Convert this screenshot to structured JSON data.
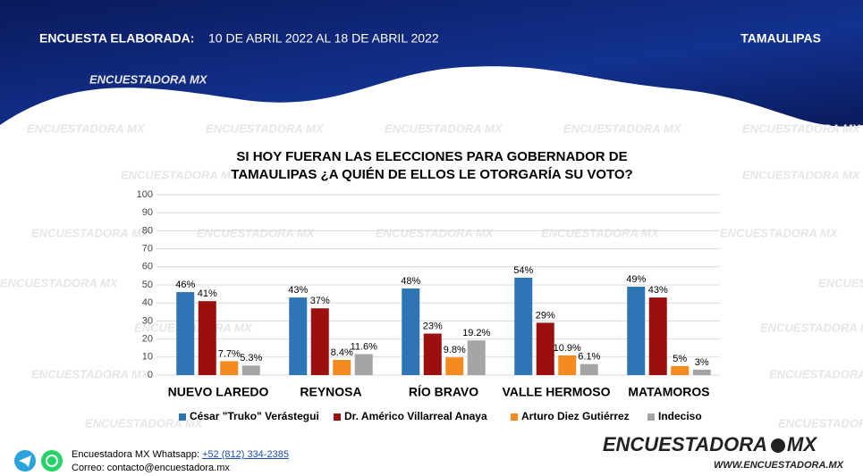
{
  "header": {
    "label": "ENCUESTA ELABORADA:",
    "dates": "10 DE ABRIL 2022 AL 18 DE ABRIL 2022",
    "state": "TAMAULIPAS"
  },
  "watermark": "ENCUESTADORA MX",
  "chart_data": {
    "type": "bar",
    "title": [
      "SI HOY FUERAN LAS ELECCIONES PARA GOBERNADOR DE",
      "TAMAULIPAS ¿A QUIÉN DE ELLOS LE OTORGARÍA SU VOTO?"
    ],
    "categories": [
      "NUEVO LAREDO",
      "REYNOSA",
      "RÍO BRAVO",
      "VALLE HERMOSO",
      "MATAMOROS"
    ],
    "series": [
      {
        "name": "César \"Truko\" Verástegui",
        "color": "#2e75b6",
        "values": [
          46,
          43,
          48,
          54,
          49
        ],
        "value_labels": [
          "46%",
          "43%",
          "48%",
          "54%",
          "49%"
        ]
      },
      {
        "name": "Dr. Américo Villarreal Anaya",
        "color": "#9b0f0f",
        "values": [
          41,
          37,
          23,
          29,
          43
        ],
        "value_labels": [
          "41%",
          "37%",
          "23%",
          "29%",
          "43%"
        ]
      },
      {
        "name": "Arturo Diez Gutiérrez",
        "color": "#f58a1f",
        "values": [
          7.7,
          8.4,
          9.8,
          10.9,
          5
        ],
        "value_labels": [
          "7.7%",
          "8.4%",
          "9.8%",
          "10.9%",
          "5%"
        ]
      },
      {
        "name": "Indeciso",
        "color": "#a5a5a5",
        "values": [
          5.3,
          11.6,
          19.2,
          6.1,
          3
        ],
        "value_labels": [
          "5.3%",
          "11.6%",
          "19.2%",
          "6.1%",
          "3%"
        ]
      }
    ],
    "ylim": [
      0,
      100
    ],
    "yticks": [
      0,
      10,
      20,
      30,
      40,
      50,
      60,
      70,
      80,
      90,
      100
    ],
    "grid": true
  },
  "footer": {
    "whatsapp_label": "Encuestadora MX Whatsapp:",
    "phone": "+52 (812) 334-2385",
    "email": "Correo: contacto@encuestadora.mx",
    "logo_left": "ENCUESTADORA",
    "logo_right": "MX",
    "url": "WWW.ENCUESTADORA.MX"
  }
}
